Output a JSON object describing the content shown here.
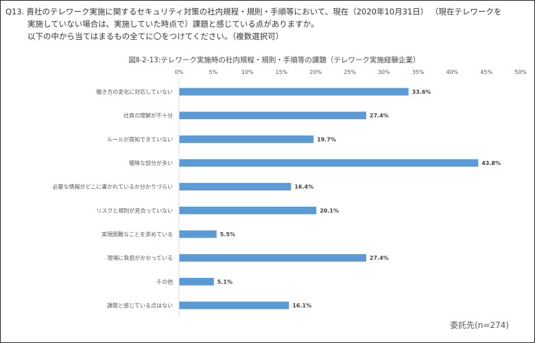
{
  "question": {
    "number": "Q13.",
    "line1": "貴社のテレワーク実施に関するセキュリティ対策の社内規程・規則・手順等において、現在（2020年10月31日） （現在テレワークを",
    "line2": "実施していない場合は、実施していた時点で）課題と感じている点がありますか。",
    "line3": "以下の中から当てはまるもの全てに〇をつけてください。（複数選択可）"
  },
  "chart_data": {
    "type": "bar",
    "orientation": "horizontal",
    "title": "図Ⅱ-2-13:テレワーク実施時の社内規程・規則・手順等の課題（テレワーク実施経験企業）",
    "categories": [
      "働き方の変化に対応していない",
      "社員の理解が不十分",
      "ルールが周知できていない",
      "曖昧な部分が多い",
      "必要な情報がどこに書かれているか分かりづらい",
      "リスクと規則が見合っていない",
      "実現困難なことを求めている",
      "現場に負担がかかっている",
      "その他",
      "課題と感じている点はない"
    ],
    "values": [
      33.6,
      27.4,
      19.7,
      43.8,
      16.4,
      20.1,
      5.5,
      27.4,
      5.1,
      16.1
    ],
    "value_labels": [
      "33.6%",
      "27.4%",
      "19.7%",
      "43.8%",
      "16.4%",
      "20.1%",
      "5.5%",
      "27.4%",
      "5.1%",
      "16.1%"
    ],
    "xlim": [
      0,
      50
    ],
    "x_ticks": [
      "0%",
      "5%",
      "10%",
      "15%",
      "20%",
      "25%",
      "30%",
      "35%",
      "40%",
      "45%",
      "50%"
    ],
    "gridlines": false,
    "bar_color": "#5b9bd5"
  },
  "footer": {
    "sample_note": "委託先(n=274)"
  }
}
